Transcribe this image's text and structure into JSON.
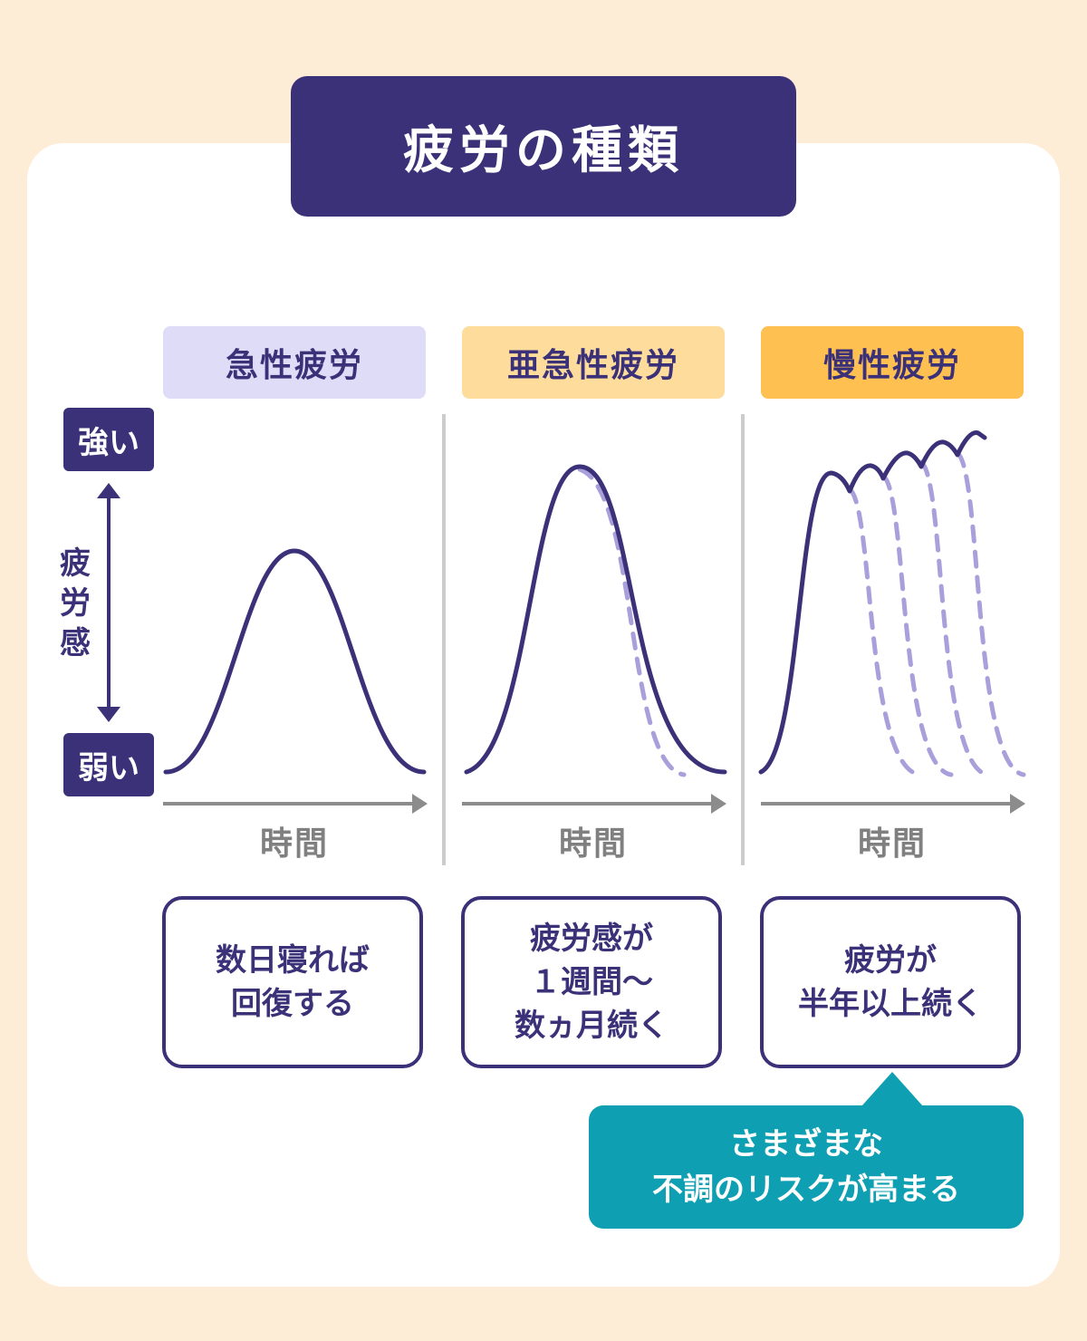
{
  "title": "疲労の種類",
  "axis": {
    "high": "強い",
    "low": "弱い",
    "label": "疲労感",
    "x_label": "時間"
  },
  "columns": [
    {
      "name": "急性疲労",
      "color": "#dedcf7",
      "description": [
        "数日寝れば",
        "回復する"
      ]
    },
    {
      "name": "亜急性疲労",
      "color": "#fedc9c",
      "description": [
        "疲労感が",
        "１週間〜",
        "数ヵ月続く"
      ]
    },
    {
      "name": "慢性疲労",
      "color": "#ffc052",
      "description": [
        "疲労が",
        "半年以上続く"
      ]
    }
  ],
  "callout": [
    "さまざまな",
    "不調のリスクが高まる"
  ],
  "colors": {
    "primary": "#3b3178",
    "dashed": "#a99fdb",
    "axis_gray": "#8c8c8c",
    "callout": "#0f9fb2",
    "background": "#fdecd6"
  }
}
